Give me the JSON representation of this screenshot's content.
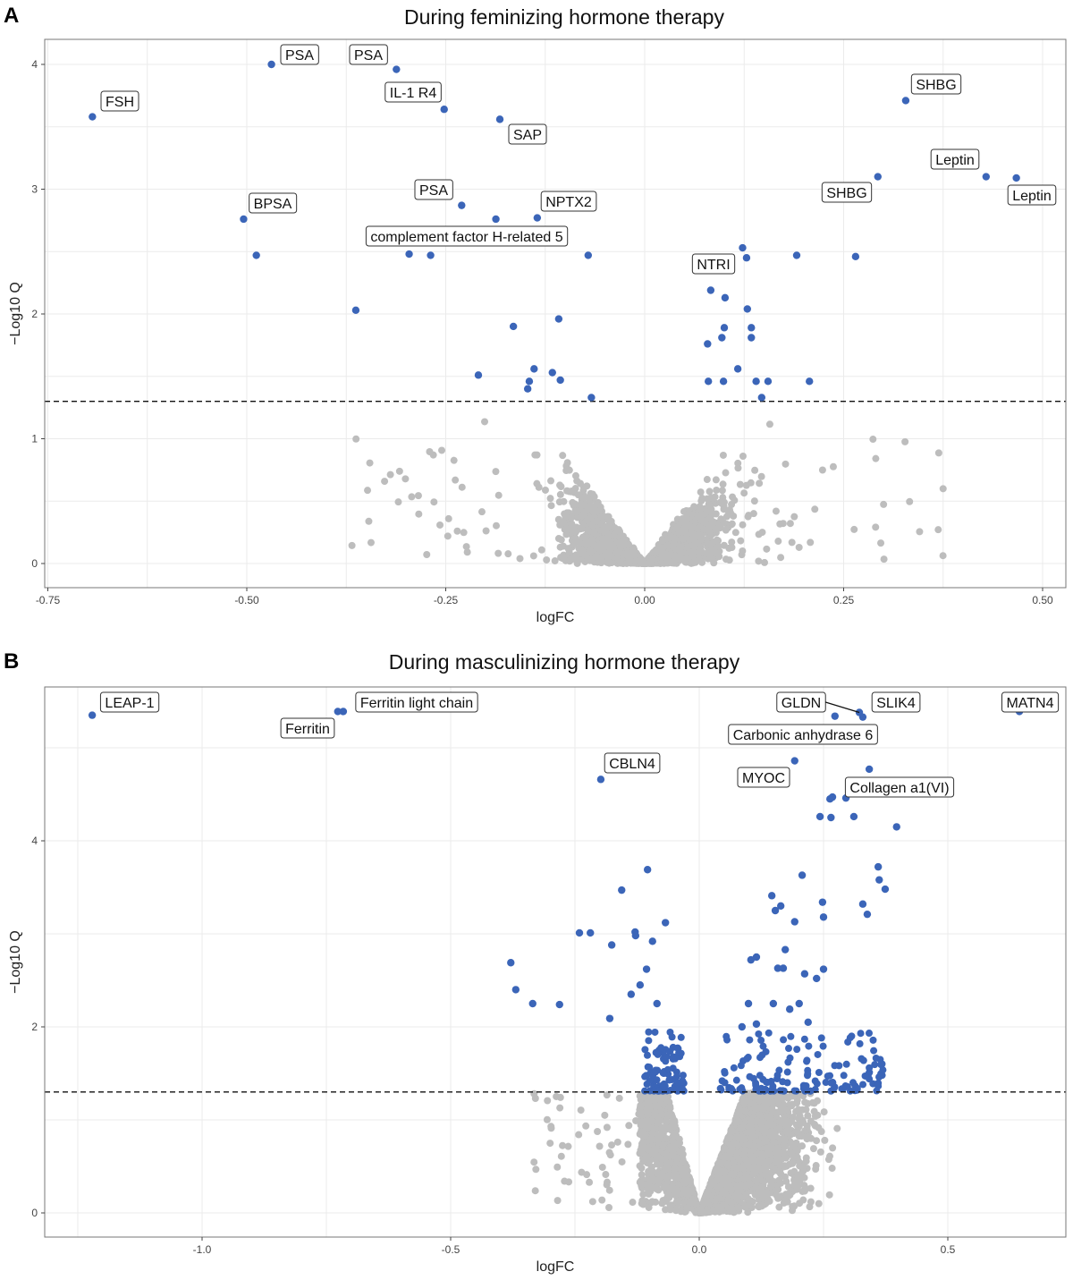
{
  "chart_data": [
    {
      "panel": "A",
      "type": "scatter",
      "title": "During feminizing hormone therapy",
      "xlabel": "logFC",
      "ylabel": "−Log10 Q",
      "xlim": [
        -0.76,
        0.52
      ],
      "ylim": [
        -0.1,
        4.2
      ],
      "xticks": [
        -0.75,
        -0.5,
        -0.25,
        0.0,
        0.25,
        0.5
      ],
      "xtick_labels": [
        "-0.75",
        "-0.50",
        "-0.25",
        "0.00",
        "0.25",
        "0.50"
      ],
      "yticks": [
        0,
        1,
        2,
        3,
        4
      ],
      "ytick_labels": [
        "0",
        "1",
        "2",
        "3",
        "4"
      ],
      "threshold_y": 1.3,
      "grid": true,
      "colors": {
        "significant": "#3b65b8",
        "nonsignificant": "#bdbdbd"
      },
      "significant_points": [
        {
          "x": -0.694,
          "y": 3.58,
          "label": "FSH"
        },
        {
          "x": -0.469,
          "y": 4.0,
          "label": "PSA"
        },
        {
          "x": -0.312,
          "y": 3.96,
          "label": "PSA"
        },
        {
          "x": -0.252,
          "y": 3.64,
          "label": "IL-1 R4"
        },
        {
          "x": -0.182,
          "y": 3.56,
          "label": "SAP"
        },
        {
          "x": 0.328,
          "y": 3.71,
          "label": "SHBG"
        },
        {
          "x": 0.293,
          "y": 3.1,
          "label": "SHBG"
        },
        {
          "x": 0.429,
          "y": 3.1,
          "label": "Leptin"
        },
        {
          "x": 0.467,
          "y": 3.09,
          "label": "Leptin"
        },
        {
          "x": -0.504,
          "y": 2.76,
          "label": "BPSA"
        },
        {
          "x": -0.23,
          "y": 2.87,
          "label": "PSA"
        },
        {
          "x": -0.135,
          "y": 2.77,
          "label": "NPTX2"
        },
        {
          "x": -0.269,
          "y": 2.47,
          "label": "complement factor H-related 5"
        },
        {
          "x": 0.123,
          "y": 2.53,
          "label": "NTRI"
        },
        {
          "x": -0.488,
          "y": 2.47
        },
        {
          "x": -0.187,
          "y": 2.76
        },
        {
          "x": -0.296,
          "y": 2.48
        },
        {
          "x": -0.071,
          "y": 2.47
        },
        {
          "x": 0.128,
          "y": 2.45
        },
        {
          "x": 0.191,
          "y": 2.47
        },
        {
          "x": 0.265,
          "y": 2.46
        },
        {
          "x": -0.363,
          "y": 2.03
        },
        {
          "x": -0.165,
          "y": 1.9
        },
        {
          "x": -0.108,
          "y": 1.96
        },
        {
          "x": -0.209,
          "y": 1.51
        },
        {
          "x": -0.139,
          "y": 1.56
        },
        {
          "x": -0.145,
          "y": 1.46
        },
        {
          "x": -0.147,
          "y": 1.4
        },
        {
          "x": -0.116,
          "y": 1.53
        },
        {
          "x": -0.106,
          "y": 1.47
        },
        {
          "x": -0.067,
          "y": 1.33
        },
        {
          "x": 0.083,
          "y": 2.19
        },
        {
          "x": 0.101,
          "y": 2.13
        },
        {
          "x": 0.129,
          "y": 2.04
        },
        {
          "x": 0.1,
          "y": 1.89
        },
        {
          "x": 0.134,
          "y": 1.89
        },
        {
          "x": 0.097,
          "y": 1.81
        },
        {
          "x": 0.134,
          "y": 1.81
        },
        {
          "x": 0.079,
          "y": 1.76
        },
        {
          "x": 0.117,
          "y": 1.56
        },
        {
          "x": 0.08,
          "y": 1.46
        },
        {
          "x": 0.099,
          "y": 1.46
        },
        {
          "x": 0.14,
          "y": 1.46
        },
        {
          "x": 0.155,
          "y": 1.46
        },
        {
          "x": 0.207,
          "y": 1.46
        },
        {
          "x": 0.147,
          "y": 1.33
        }
      ]
    },
    {
      "panel": "B",
      "type": "scatter",
      "title": "During masculinizing hormone therapy",
      "xlabel": "logFC",
      "ylabel": "−Log10 Q",
      "xlim": [
        -1.31,
        0.74
      ],
      "ylim": [
        -0.13,
        5.6
      ],
      "xticks": [
        -1.0,
        -0.5,
        0.0,
        0.5
      ],
      "xtick_labels": [
        "-1.0",
        "-0.5",
        "0.0",
        "0.5"
      ],
      "yticks": [
        0,
        2,
        4
      ],
      "ytick_labels": [
        "0",
        "2",
        "4"
      ],
      "threshold_y": 1.3,
      "grid": true,
      "colors": {
        "significant": "#3b65b8",
        "nonsignificant": "#bdbdbd"
      },
      "significant_points": [
        {
          "x": -1.221,
          "y": 5.35,
          "label": "LEAP-1"
        },
        {
          "x": -0.716,
          "y": 5.39,
          "label": "Ferritin light chain"
        },
        {
          "x": -0.727,
          "y": 5.39,
          "label": "Ferritin"
        },
        {
          "x": -0.198,
          "y": 4.66,
          "label": "CBLN4"
        },
        {
          "x": 0.322,
          "y": 5.38,
          "label": "GLDN"
        },
        {
          "x": 0.329,
          "y": 5.33,
          "label": "SLIK4"
        },
        {
          "x": 0.273,
          "y": 5.34,
          "label": "Carbonic anhydrase 6"
        },
        {
          "x": 0.644,
          "y": 5.39,
          "label": "MATN4"
        },
        {
          "x": 0.192,
          "y": 4.86,
          "label": "MYOC"
        },
        {
          "x": 0.342,
          "y": 4.77,
          "label": "Collagen a1(VI)"
        },
        {
          "x": 0.295,
          "y": 4.46
        },
        {
          "x": 0.263,
          "y": 4.45
        },
        {
          "x": 0.268,
          "y": 4.47
        },
        {
          "x": -0.104,
          "y": 3.69
        },
        {
          "x": -0.156,
          "y": 3.47
        },
        {
          "x": -0.068,
          "y": 3.12
        },
        {
          "x": -0.241,
          "y": 3.01
        },
        {
          "x": -0.219,
          "y": 3.01
        },
        {
          "x": -0.129,
          "y": 3.02
        },
        {
          "x": -0.128,
          "y": 2.98
        },
        {
          "x": -0.176,
          "y": 2.88
        },
        {
          "x": -0.094,
          "y": 2.92
        },
        {
          "x": -0.379,
          "y": 2.69
        },
        {
          "x": -0.369,
          "y": 2.4
        },
        {
          "x": -0.335,
          "y": 2.25
        },
        {
          "x": -0.281,
          "y": 2.24
        },
        {
          "x": -0.106,
          "y": 2.62
        },
        {
          "x": -0.119,
          "y": 2.45
        },
        {
          "x": -0.137,
          "y": 2.35
        },
        {
          "x": -0.18,
          "y": 2.09
        },
        {
          "x": -0.085,
          "y": 2.25
        },
        {
          "x": 0.207,
          "y": 3.63
        },
        {
          "x": 0.146,
          "y": 3.41
        },
        {
          "x": 0.164,
          "y": 3.3
        },
        {
          "x": 0.153,
          "y": 3.25
        },
        {
          "x": 0.192,
          "y": 3.13
        },
        {
          "x": 0.248,
          "y": 3.34
        },
        {
          "x": 0.25,
          "y": 3.18
        },
        {
          "x": 0.36,
          "y": 3.72
        },
        {
          "x": 0.362,
          "y": 3.58
        },
        {
          "x": 0.374,
          "y": 3.48
        },
        {
          "x": 0.329,
          "y": 3.32
        },
        {
          "x": 0.338,
          "y": 3.21
        },
        {
          "x": 0.311,
          "y": 4.26
        },
        {
          "x": 0.243,
          "y": 4.26
        },
        {
          "x": 0.265,
          "y": 4.25
        },
        {
          "x": 0.397,
          "y": 4.15
        },
        {
          "x": 0.173,
          "y": 2.83
        },
        {
          "x": 0.115,
          "y": 2.75
        },
        {
          "x": 0.104,
          "y": 2.72
        },
        {
          "x": 0.158,
          "y": 2.63
        },
        {
          "x": 0.169,
          "y": 2.63
        },
        {
          "x": 0.212,
          "y": 2.57
        },
        {
          "x": 0.25,
          "y": 2.62
        },
        {
          "x": 0.236,
          "y": 2.52
        },
        {
          "x": 0.099,
          "y": 2.25
        },
        {
          "x": 0.149,
          "y": 2.25
        },
        {
          "x": 0.201,
          "y": 2.25
        },
        {
          "x": 0.182,
          "y": 2.19
        },
        {
          "x": 0.219,
          "y": 2.05
        },
        {
          "x": 0.115,
          "y": 2.03
        },
        {
          "x": 0.086,
          "y": 2.0
        }
      ]
    }
  ]
}
